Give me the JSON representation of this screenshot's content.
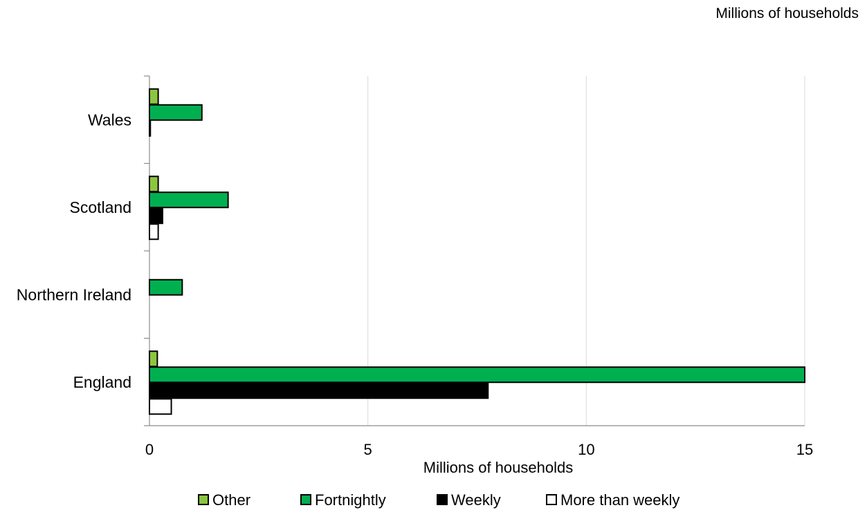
{
  "unit_note": "Millions of households",
  "chart_data": {
    "type": "bar",
    "orientation": "horizontal",
    "title": "",
    "xlabel": "Millions of households",
    "ylabel": "",
    "categories": [
      "Wales",
      "Scotland",
      "Northern Ireland",
      "England"
    ],
    "xlim": [
      0,
      15
    ],
    "xticks": [
      "0",
      "5",
      "10",
      "15"
    ],
    "grid": true,
    "legend_position": "bottom",
    "series": [
      {
        "name": "Other",
        "color": "#8cc63f",
        "values": [
          0.2,
          0.2,
          0,
          0.18
        ]
      },
      {
        "name": "Fortnightly",
        "color": "#00b050",
        "values": [
          1.2,
          1.8,
          0.75,
          15.0
        ]
      },
      {
        "name": "Weekly",
        "color": "#000000",
        "values": [
          0.02,
          0.3,
          0,
          7.75
        ]
      },
      {
        "name": "More than weekly",
        "color": "#ffffff",
        "values": [
          0,
          0.2,
          0,
          0.5
        ]
      }
    ]
  }
}
